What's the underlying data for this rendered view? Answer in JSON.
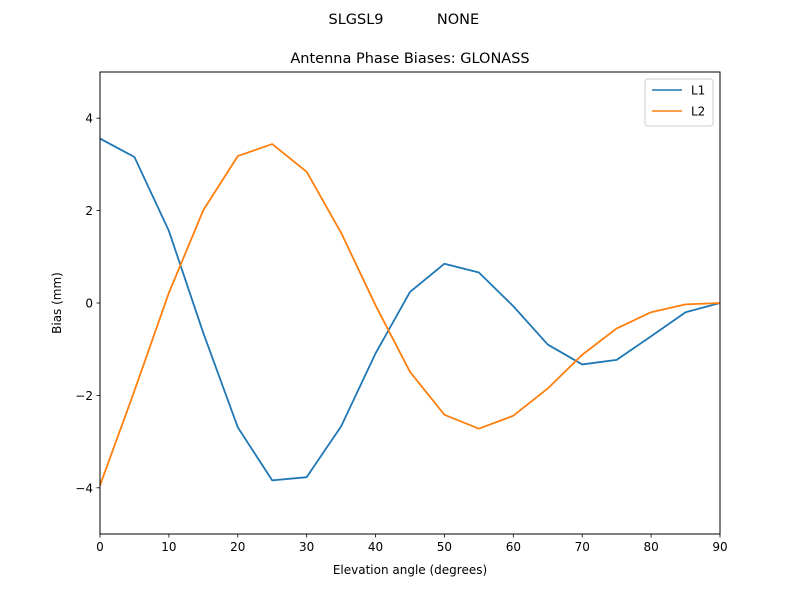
{
  "figure": {
    "suptitle_left": "SLGSL9",
    "suptitle_right": "NONE",
    "background": "#ffffff"
  },
  "chart_data": {
    "type": "line",
    "title": "Antenna Phase Biases: GLONASS",
    "xlabel": "Elevation angle (degrees)",
    "ylabel": "Bias (mm)",
    "xlim": [
      0,
      90
    ],
    "ylim": [
      -5,
      5
    ],
    "xticks": [
      0,
      10,
      20,
      30,
      40,
      50,
      60,
      70,
      80,
      90
    ],
    "yticks": [
      -4,
      -2,
      0,
      2,
      4
    ],
    "ytick_labels": [
      "−4",
      "−2",
      "0",
      "2",
      "4"
    ],
    "grid": false,
    "legend_position": "upper right",
    "x": [
      0,
      5,
      10,
      15,
      20,
      25,
      30,
      35,
      40,
      45,
      50,
      55,
      60,
      65,
      70,
      75,
      80,
      85,
      90
    ],
    "series": [
      {
        "name": "L1",
        "color": "#1f77b4",
        "values": [
          3.56,
          3.16,
          1.56,
          -0.65,
          -2.69,
          -3.84,
          -3.77,
          -2.67,
          -1.09,
          0.24,
          0.85,
          0.66,
          -0.07,
          -0.9,
          -1.33,
          -1.23,
          -0.72,
          -0.2,
          0.0
        ]
      },
      {
        "name": "L2",
        "color": "#ff7f0e",
        "values": [
          -3.95,
          -1.9,
          0.22,
          2.01,
          3.18,
          3.44,
          2.84,
          1.52,
          -0.05,
          -1.49,
          -2.42,
          -2.72,
          -2.44,
          -1.85,
          -1.12,
          -0.55,
          -0.2,
          -0.03,
          0.0
        ]
      }
    ]
  }
}
